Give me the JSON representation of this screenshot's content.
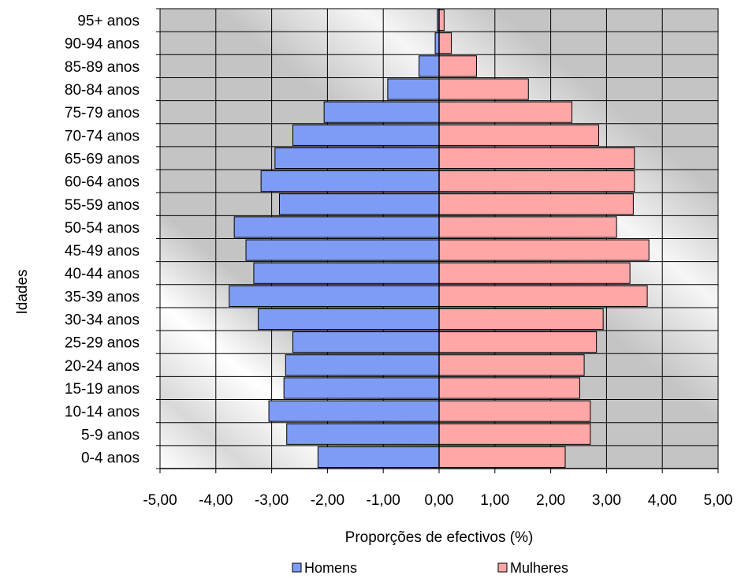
{
  "chart_data": {
    "type": "bar",
    "orientation": "horizontal",
    "stacking": "population-pyramid",
    "categories": [
      "0-4 anos",
      "5-9 anos",
      "10-14 anos",
      "15-19 anos",
      "20-24 anos",
      "25-29 anos",
      "30-34 anos",
      "35-39 anos",
      "40-44 anos",
      "45-49 anos",
      "50-54 anos",
      "55-59 anos",
      "60-64 anos",
      "65-69 anos",
      "70-74 anos",
      "75-79 anos",
      "80-84 anos",
      "85-89 anos",
      "90-94 anos",
      "95+ anos"
    ],
    "series": [
      {
        "name": "Homens",
        "color": "#7f9cf5",
        "values": [
          -2.17,
          -2.73,
          -3.05,
          -2.78,
          -2.75,
          -2.62,
          -3.24,
          -3.76,
          -3.32,
          -3.46,
          -3.67,
          -2.86,
          -3.19,
          -2.94,
          -2.62,
          -2.06,
          -0.92,
          -0.36,
          -0.07,
          -0.03
        ]
      },
      {
        "name": "Mulheres",
        "color": "#ffa6a6",
        "values": [
          2.26,
          2.71,
          2.71,
          2.52,
          2.6,
          2.82,
          2.94,
          3.73,
          3.42,
          3.76,
          3.18,
          3.48,
          3.5,
          3.5,
          2.86,
          2.38,
          1.6,
          0.67,
          0.22,
          0.09
        ]
      }
    ],
    "xlim": [
      -5,
      5
    ],
    "xticks": [
      "-5,00",
      "-4,00",
      "-3,00",
      "-2,00",
      "-1,00",
      "0,00",
      "1,00",
      "2,00",
      "3,00",
      "4,00",
      "5,00"
    ],
    "xlabel": "Proporções de efectivos (%)",
    "ylabel": "Idades",
    "title": "",
    "legend": {
      "placement": "bottom",
      "entries": [
        "Homens",
        "Mulheres"
      ]
    },
    "grid": true,
    "plot_background": "#c0c0c0"
  }
}
